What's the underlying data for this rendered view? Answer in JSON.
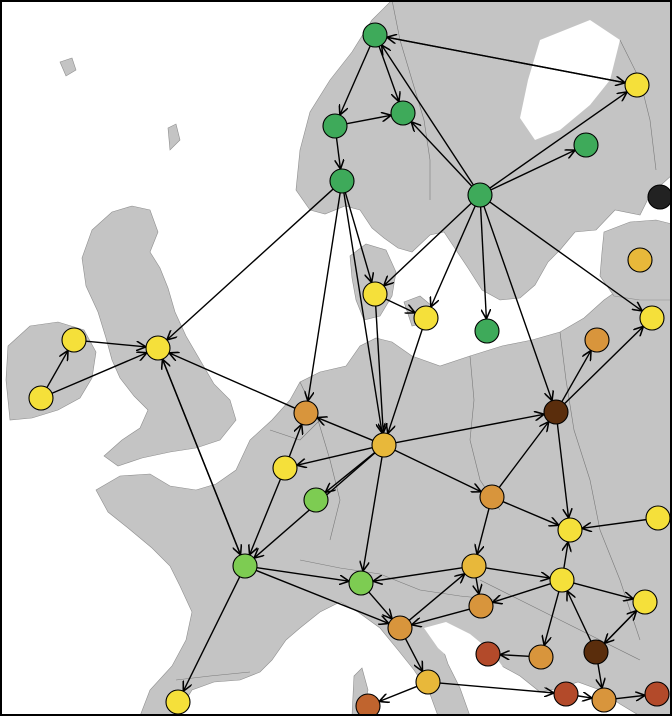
{
  "map": {
    "style": "directed-network-over-europe",
    "land_color": "#c4c4c4",
    "sea_color": "#ffffff",
    "border_color": "#7a7a7a",
    "edge_color": "#000000",
    "node_colors": {
      "green": "#3eaa5a",
      "light-green": "#7dcc52",
      "yellow": "#f5e03a",
      "gold": "#e8b83a",
      "orange": "#d8953c",
      "rust": "#c0642e",
      "red-brown": "#b34a2a",
      "dark-brown": "#5a2d0c",
      "black": "#222222"
    },
    "legend_visible": false,
    "labels_visible": false
  }
}
